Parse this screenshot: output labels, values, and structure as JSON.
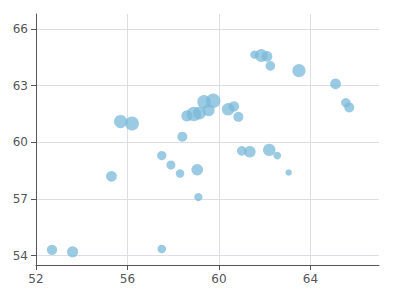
{
  "chart_data": {
    "type": "bubble",
    "x": [
      52.7,
      53.6,
      55.7,
      56.2,
      55.3,
      57.5,
      57.5,
      57.9,
      58.3,
      58.4,
      58.6,
      58.9,
      59.15,
      59.35,
      59.55,
      59.75,
      59.05,
      59.1,
      60.4,
      60.65,
      60.85,
      61.0,
      61.35,
      62.2,
      62.55,
      63.05,
      61.55,
      61.85,
      62.1,
      62.25,
      63.5,
      65.1,
      65.55,
      65.7
    ],
    "values": [
      54.3,
      54.2,
      61.1,
      61.0,
      58.2,
      59.3,
      54.35,
      58.8,
      58.35,
      60.3,
      61.4,
      61.5,
      61.55,
      62.15,
      61.7,
      62.2,
      58.55,
      57.1,
      61.75,
      61.9,
      61.35,
      59.55,
      59.5,
      59.6,
      59.3,
      58.4,
      64.65,
      64.6,
      64.55,
      64.05,
      63.8,
      63.1,
      62.1,
      61.85
    ],
    "sizes": [
      55,
      65,
      90,
      100,
      60,
      45,
      38,
      42,
      38,
      52,
      65,
      110,
      85,
      95,
      75,
      110,
      70,
      35,
      80,
      58,
      52,
      48,
      70,
      80,
      30,
      22,
      35,
      85,
      60,
      48,
      90,
      60,
      45,
      52
    ],
    "color": "#7ab8d9",
    "xlim": [
      52,
      67
    ],
    "ylim": [
      53.5,
      66.8
    ],
    "xticks": [
      52,
      56,
      60,
      64
    ],
    "yticks": [
      54,
      57,
      60,
      63,
      66
    ],
    "grid": true
  }
}
